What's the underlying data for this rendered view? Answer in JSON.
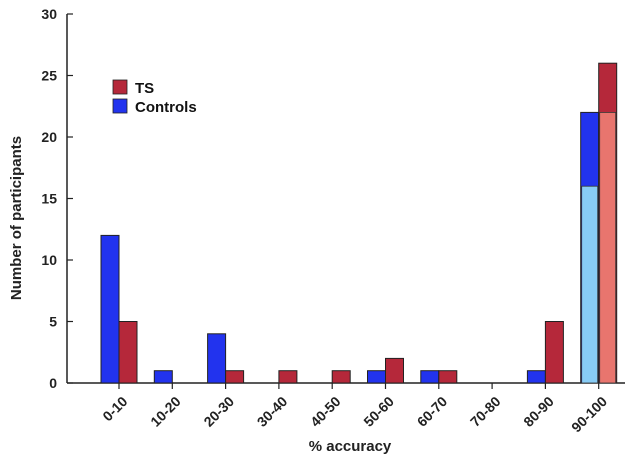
{
  "chart_data": {
    "type": "bar",
    "title": "",
    "xlabel": "% accuracy",
    "ylabel": "Number of participants",
    "ylim": [
      0,
      30
    ],
    "yticks": [
      0,
      5,
      10,
      15,
      20,
      25,
      30
    ],
    "categories": [
      "0-10",
      "10-20",
      "20-30",
      "30-40",
      "40-50",
      "50-60",
      "60-70",
      "70-80",
      "80-90",
      "90-100"
    ],
    "series": [
      {
        "name": "Controls",
        "color": "#2233ee",
        "values": [
          12,
          1,
          4,
          0,
          0,
          1,
          1,
          0,
          1,
          22
        ]
      },
      {
        "name": "TS",
        "color": "#b5283a",
        "values": [
          5,
          0,
          1,
          1,
          1,
          2,
          1,
          0,
          5,
          26
        ]
      }
    ],
    "highlight": {
      "category": "90-100",
      "Controls": {
        "value": 16,
        "color": "#88ccf5"
      },
      "TS": {
        "value": 22,
        "color": "#e8756e"
      }
    },
    "legend": {
      "placement": "top-left",
      "order": [
        "TS",
        "Controls"
      ]
    },
    "grid": false
  }
}
